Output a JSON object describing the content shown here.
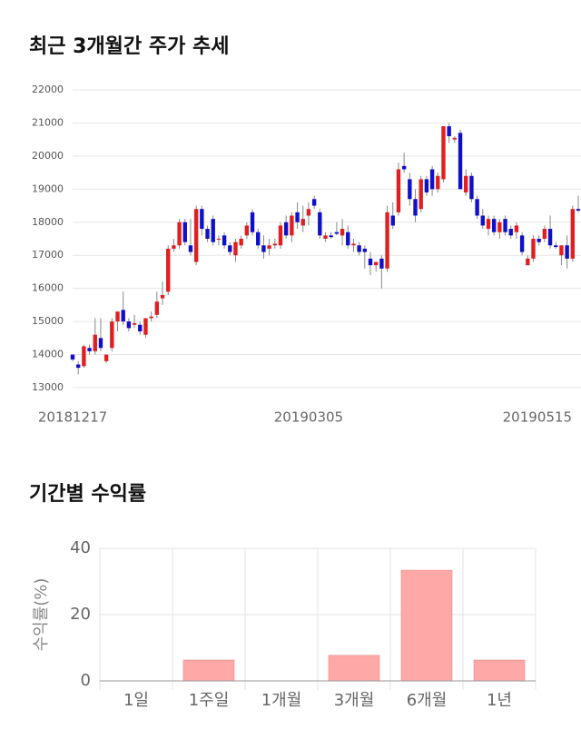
{
  "chart_data": [
    {
      "type": "candlestick",
      "title": "최근 3개월간 주가 추세",
      "categories": [
        "20181217",
        null,
        null,
        null,
        null,
        null,
        null,
        null,
        null,
        null,
        null,
        null,
        null,
        null,
        null,
        null,
        null,
        null,
        null,
        null,
        null,
        null,
        null,
        null,
        null,
        null,
        null,
        null,
        null,
        null,
        null,
        null,
        null,
        null,
        null,
        null,
        null,
        null,
        null,
        null,
        null,
        null,
        "20190305",
        null,
        null,
        null,
        null,
        null,
        null,
        null,
        null,
        null,
        null,
        null,
        null,
        null,
        null,
        null,
        null,
        null,
        null,
        null,
        null,
        null,
        null,
        null,
        null,
        null,
        null,
        null,
        null,
        null,
        null,
        null,
        null,
        null,
        null,
        null,
        null,
        null,
        null,
        null,
        null,
        null,
        null,
        null,
        null,
        null,
        null,
        null,
        "20190515"
      ],
      "open": [
        14000,
        13700,
        13650,
        14200,
        14100,
        14500,
        13800,
        14200,
        15000,
        15350,
        15000,
        14900,
        14900,
        14600,
        15100,
        15200,
        15700,
        15900,
        17200,
        17300,
        18000,
        17300,
        16800,
        18400,
        17800,
        18100,
        17500,
        17600,
        17300,
        17000,
        17300,
        17600,
        18300,
        17700,
        17300,
        17200,
        17300,
        17300,
        18000,
        17600,
        18300,
        17900,
        18200,
        18700,
        18300,
        17500,
        17600,
        17700,
        17600,
        17700,
        17300,
        17300,
        17200,
        16900,
        16700,
        16900,
        16600,
        18200,
        18300,
        19700,
        19300,
        18700,
        18400,
        19300,
        19600,
        19000,
        19300,
        20900,
        20500,
        20700,
        18900,
        19400,
        18700,
        18200,
        17800,
        18100,
        17700,
        18100,
        17800,
        17700,
        17600,
        16700,
        16900,
        17500,
        17500,
        17800,
        17300,
        17000,
        17300,
        16900,
        18400
      ],
      "high": [
        14000,
        13800,
        14300,
        14300,
        15100,
        15100,
        14000,
        15100,
        15300,
        15900,
        15100,
        15200,
        15000,
        15100,
        15300,
        15900,
        16200,
        17300,
        17500,
        18100,
        18100,
        18100,
        18500,
        18500,
        17900,
        18200,
        17600,
        17700,
        17400,
        17500,
        17600,
        18000,
        18400,
        17800,
        17600,
        17500,
        17500,
        18000,
        18200,
        18300,
        18600,
        18500,
        18600,
        18800,
        18400,
        17700,
        17700,
        18000,
        18100,
        17900,
        17500,
        17400,
        17300,
        17100,
        16800,
        17000,
        18500,
        18600,
        19800,
        20100,
        19500,
        19000,
        19400,
        19400,
        19700,
        19500,
        20900,
        21000,
        20600,
        20800,
        19600,
        19500,
        18800,
        18400,
        18200,
        18200,
        18100,
        18200,
        17900,
        18000,
        17700,
        17000,
        17600,
        17600,
        17900,
        18200,
        17400,
        17300,
        17600,
        18500,
        18800
      ],
      "low": [
        13800,
        13400,
        13600,
        14000,
        14000,
        14100,
        13750,
        14100,
        14700,
        14900,
        14700,
        14800,
        14600,
        14500,
        15000,
        15100,
        15500,
        15800,
        17100,
        17200,
        17300,
        17000,
        16700,
        17600,
        17400,
        17300,
        17300,
        17200,
        17000,
        16800,
        17200,
        17500,
        17600,
        17200,
        16900,
        17000,
        17200,
        17200,
        17500,
        17400,
        17800,
        17700,
        17900,
        18400,
        17500,
        17400,
        17500,
        17600,
        17300,
        17200,
        17100,
        17000,
        16600,
        16400,
        16500,
        16000,
        16500,
        17800,
        18200,
        19500,
        18500,
        18000,
        18300,
        18800,
        18800,
        18900,
        19200,
        20400,
        20400,
        19000,
        18800,
        18600,
        18100,
        17800,
        17600,
        17600,
        17500,
        17600,
        17500,
        17500,
        17000,
        16700,
        16800,
        17300,
        17400,
        17200,
        17200,
        16700,
        16600,
        16800,
        18300
      ],
      "close": [
        13850,
        13600,
        14250,
        14100,
        14600,
        14200,
        14000,
        15000,
        15300,
        15000,
        14800,
        14950,
        14700,
        15100,
        15150,
        15600,
        15800,
        17200,
        17300,
        18000,
        17400,
        17100,
        18400,
        17800,
        17500,
        17400,
        17500,
        17300,
        17100,
        17400,
        17500,
        17900,
        17700,
        17300,
        17100,
        17300,
        17350,
        17900,
        17600,
        18200,
        18000,
        18100,
        18400,
        18500,
        17600,
        17600,
        17550,
        17650,
        17800,
        17300,
        17350,
        17100,
        17100,
        16700,
        16800,
        16600,
        18300,
        17900,
        19600,
        19600,
        18700,
        18200,
        19300,
        18900,
        19000,
        19400,
        20900,
        20600,
        20550,
        19000,
        19400,
        18700,
        18200,
        17900,
        18100,
        17700,
        18000,
        17700,
        17600,
        17900,
        17100,
        16900,
        17500,
        17400,
        17800,
        17300,
        17250,
        17300,
        16900,
        18400,
        18350
      ],
      "up_color": "#e02020",
      "down_color": "#1010c8",
      "ylim": [
        13000,
        22000
      ],
      "yticks": [
        13000,
        14000,
        15000,
        16000,
        17000,
        18000,
        19000,
        20000,
        21000,
        22000
      ],
      "grid": true
    },
    {
      "type": "bar",
      "title": "기간별 수익률",
      "ylabel": "수익률(%)",
      "categories": [
        "1일",
        "1주일",
        "1개월",
        "3개월",
        "6개월",
        "1년"
      ],
      "values": [
        0,
        6.3,
        0,
        7.7,
        33.4,
        6.3
      ],
      "color": "#ffa8a8",
      "ylim": [
        0,
        40
      ],
      "yticks": [
        0,
        20,
        40
      ],
      "grid": true
    }
  ]
}
